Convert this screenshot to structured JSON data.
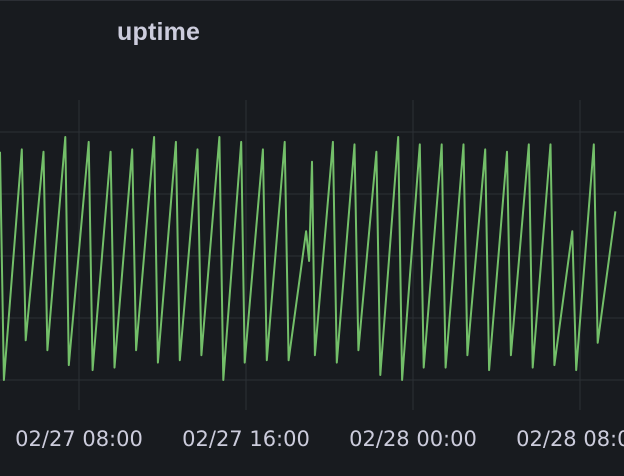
{
  "panel": {
    "title": "uptime"
  },
  "colors": {
    "background": "#181b1f",
    "grid": "#2c3036",
    "series": "#73bf69",
    "text": "#ccccdc"
  },
  "chart_data": {
    "type": "line",
    "title": "uptime",
    "xlabel": "",
    "ylabel": "",
    "grid": true,
    "legend": "none",
    "x_tick_labels": [
      "02/27 08:00",
      "02/27 16:00",
      "02/28 00:00",
      "02/28 08:00"
    ],
    "x_range_hours": [
      0,
      32
    ],
    "y_range": [
      0,
      100
    ],
    "series": [
      {
        "points": [
          [
            0.0,
            92
          ],
          [
            0.2,
            0
          ],
          [
            1.12,
            93
          ],
          [
            1.32,
            16
          ],
          [
            2.23,
            92
          ],
          [
            2.43,
            12
          ],
          [
            3.35,
            98
          ],
          [
            3.53,
            6
          ],
          [
            4.55,
            96
          ],
          [
            4.75,
            4
          ],
          [
            5.67,
            92
          ],
          [
            5.87,
            5
          ],
          [
            6.78,
            93
          ],
          [
            6.98,
            12
          ],
          [
            7.9,
            98
          ],
          [
            8.1,
            7
          ],
          [
            9.02,
            96
          ],
          [
            9.22,
            8
          ],
          [
            10.13,
            93
          ],
          [
            10.33,
            10
          ],
          [
            11.25,
            98
          ],
          [
            11.45,
            0
          ],
          [
            12.37,
            96
          ],
          [
            12.55,
            7
          ],
          [
            13.48,
            93
          ],
          [
            13.68,
            8
          ],
          [
            14.6,
            96
          ],
          [
            14.8,
            8
          ],
          [
            15.7,
            60
          ],
          [
            15.85,
            48
          ],
          [
            16.0,
            88
          ],
          [
            16.15,
            10
          ],
          [
            17.07,
            96
          ],
          [
            17.27,
            7
          ],
          [
            18.18,
            95
          ],
          [
            18.38,
            12
          ],
          [
            19.3,
            92
          ],
          [
            19.5,
            2
          ],
          [
            20.42,
            98
          ],
          [
            20.62,
            0
          ],
          [
            21.53,
            95
          ],
          [
            21.73,
            5
          ],
          [
            22.65,
            95
          ],
          [
            22.85,
            5
          ],
          [
            23.77,
            95
          ],
          [
            23.97,
            10
          ],
          [
            24.88,
            93
          ],
          [
            25.08,
            4
          ],
          [
            26.0,
            92
          ],
          [
            26.2,
            10
          ],
          [
            27.12,
            95
          ],
          [
            27.32,
            5
          ],
          [
            28.23,
            95
          ],
          [
            28.43,
            6
          ],
          [
            29.35,
            60
          ],
          [
            29.55,
            4
          ],
          [
            30.45,
            95
          ],
          [
            30.65,
            15
          ],
          [
            31.56,
            68
          ]
        ]
      }
    ]
  }
}
